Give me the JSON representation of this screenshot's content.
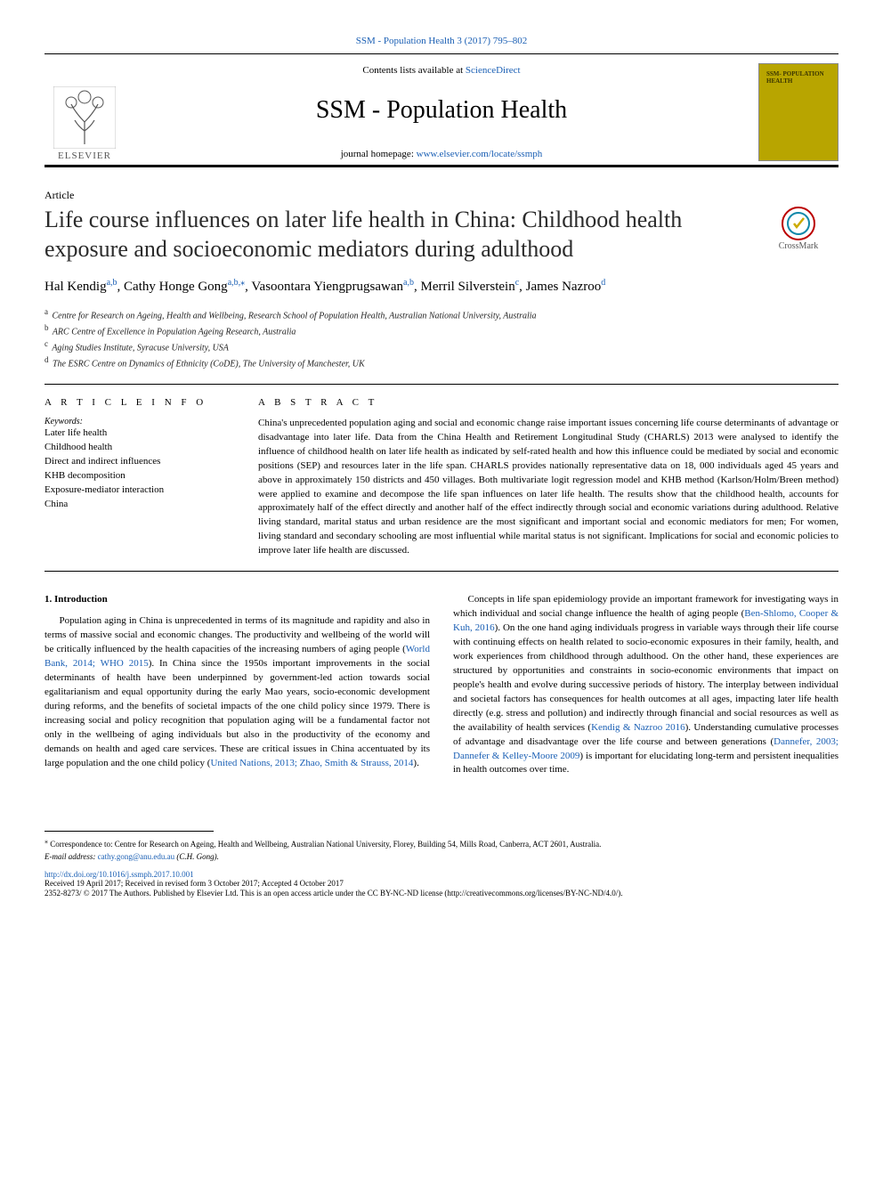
{
  "journal_ref": "SSM - Population Health 3 (2017) 795–802",
  "masthead": {
    "contents_prefix": "Contents lists available at ",
    "contents_link": "ScienceDirect",
    "journal_name": "SSM - Population Health",
    "homepage_prefix": "journal homepage: ",
    "homepage_url": "www.elsevier.com/locate/ssmph",
    "publisher_brand": "ELSEVIER",
    "cover_text": "SSM-\nPOPULATION\nHEALTH"
  },
  "article_type": "Article",
  "title": "Life course influences on later life health in China: Childhood health exposure and socioeconomic mediators during adulthood",
  "crossmark_label": "CrossMark",
  "authors": [
    {
      "name": "Hal Kendig",
      "aff": "a,b"
    },
    {
      "name": "Cathy Honge Gong",
      "aff": "a,b,",
      "corresp": true
    },
    {
      "name": "Vasoontara Yiengprugsawan",
      "aff": "a,b"
    },
    {
      "name": "Merril Silverstein",
      "aff": "c"
    },
    {
      "name": "James Nazroo",
      "aff": "d"
    }
  ],
  "affiliations": [
    {
      "marker": "a",
      "text": "Centre for Research on Ageing, Health and Wellbeing, Research School of Population Health, Australian National University, Australia"
    },
    {
      "marker": "b",
      "text": "ARC Centre of Excellence in Population Ageing Research, Australia"
    },
    {
      "marker": "c",
      "text": "Aging Studies Institute, Syracuse University, USA"
    },
    {
      "marker": "d",
      "text": "The ESRC Centre on Dynamics of Ethnicity (CoDE), The University of Manchester, UK"
    }
  ],
  "info_head": "A R T I C L E  I N F O",
  "abstract_head": "A B S T R A C T",
  "keywords_label": "Keywords:",
  "keywords": [
    "Later life health",
    "Childhood health",
    "Direct and indirect influences",
    "KHB decomposition",
    "Exposure-mediator interaction",
    "China"
  ],
  "abstract": "China's unprecedented population aging and social and economic change raise important issues concerning life course determinants of advantage or disadvantage into later life. Data from the China Health and Retirement Longitudinal Study (CHARLS) 2013 were analysed to identify the influence of childhood health on later life health as indicated by self-rated health and how this influence could be mediated by social and economic positions (SEP) and resources later in the life span. CHARLS provides nationally representative data on 18, 000 individuals aged 45 years and above in approximately 150 districts and 450 villages. Both multivariate logit regression model and KHB method (Karlson/Holm/Breen method) were applied to examine and decompose the life span influences on later life health. The results show that the childhood health, accounts for approximately half of the effect directly and another half of the effect indirectly through social and economic variations during adulthood. Relative living standard, marital status and urban residence are the most significant and important social and economic mediators for men; For women, living standard and secondary schooling are most influential while marital status is not significant. Implications for social and economic policies to improve later life health are discussed.",
  "intro_head": "1. Introduction",
  "intro_p1_a": "Population aging in China is unprecedented in terms of its magnitude and rapidity and also in terms of massive social and economic changes. The productivity and wellbeing of the world will be critically influenced by the health capacities of the increasing numbers of aging people (",
  "intro_p1_cite1": "World Bank, 2014; WHO 2015",
  "intro_p1_b": "). In China since the 1950s important improvements in the social determinants of health have been underpinned by government-led action towards social egalitarianism and equal opportunity during the early Mao years, socio-economic development during reforms, and the benefits of societal impacts of the one child policy since 1979. There is increasing social and policy recognition that population aging will be a fundamental factor not only in the wellbeing of aging individuals but also in the productivity of the economy and demands on health and aged care services. These are critical issues in China accentuated by its large population and the one child policy (",
  "intro_p1_cite2": "United Nations, 2013; Zhao, Smith & Strauss, 2014",
  "intro_p1_c": ").",
  "intro_p2_a": "Concepts in life span epidemiology provide an important framework for investigating ways in which individual and social change influence the health of aging people (",
  "intro_p2_cite1": "Ben-Shlomo, Cooper & Kuh, 2016",
  "intro_p2_b": "). On the one hand aging individuals progress in variable ways through their life course with continuing effects on health related to socio-economic exposures in their family, health, and work experiences from childhood through adulthood. On the other hand, these experiences are structured by opportunities and constraints in socio-economic environments that impact on people's health and evolve during successive periods of history. The interplay between individual and societal factors has consequences for health outcomes at all ages, impacting later life health directly (e.g. stress and pollution) and indirectly through financial and social resources as well as the availability of health services (",
  "intro_p2_cite2": "Kendig & Nazroo 2016",
  "intro_p2_c": "). Understanding cumulative processes of advantage and disadvantage over the life course and between generations (",
  "intro_p2_cite3": "Dannefer, 2003; Dannefer & Kelley-Moore 2009",
  "intro_p2_d": ") is important for elucidating long-term and persistent inequalities in health outcomes over time.",
  "correspondence": "Correspondence to: Centre for Research on Ageing, Health and Wellbeing, Australian National University, Florey, Building 54, Mills Road, Canberra, ACT 2601, Australia.",
  "email_label": "E-mail address: ",
  "email": "cathy.gong@anu.edu.au",
  "email_whom": " (C.H. Gong).",
  "doi": "http://dx.doi.org/10.1016/j.ssmph.2017.10.001",
  "history": "Received 19 April 2017; Received in revised form 3 October 2017; Accepted 4 October 2017",
  "license": "2352-8273/ © 2017 The Authors. Published by Elsevier Ltd. This is an open access article under the CC BY-NC-ND license (http://creativecommons.org/licenses/BY-NC-ND/4.0/).",
  "colors": {
    "link": "#1a5fb4",
    "cover_bg": "#b8a500",
    "rule": "#000000"
  }
}
